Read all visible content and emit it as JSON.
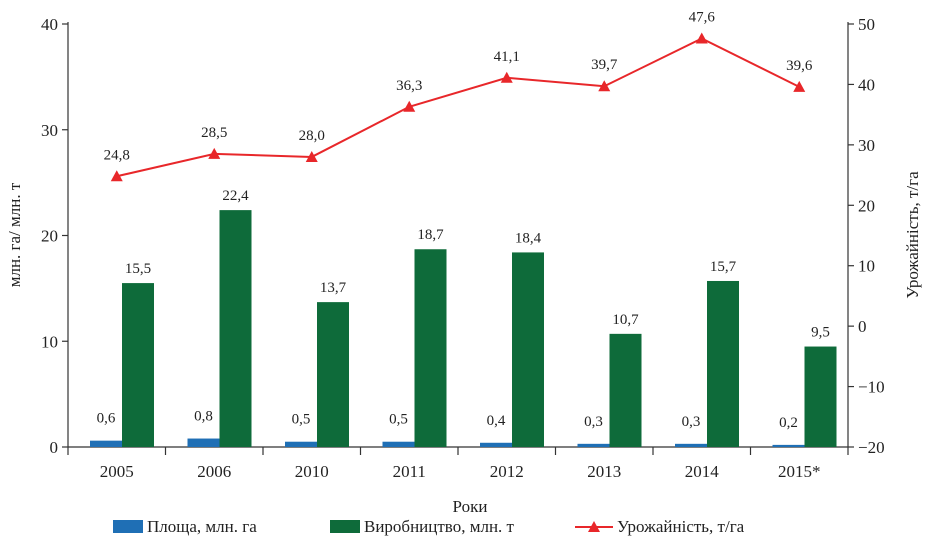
{
  "chart_data": {
    "type": "bar",
    "categories": [
      "2005",
      "2006",
      "2010",
      "2011",
      "2012",
      "2013",
      "2014",
      "2015*"
    ],
    "xlabel": "Роки",
    "ylabel_left": "млн. га/ млн. т",
    "ylabel_right": "Урожайність, т/га",
    "ylim_left": [
      0,
      40
    ],
    "yticks_left": [
      0,
      10,
      20,
      30,
      40
    ],
    "ylim_right": [
      -20,
      50
    ],
    "yticks_right": [
      -20,
      -10,
      0,
      10,
      20,
      30,
      40,
      50
    ],
    "grid": false,
    "legend_position": "bottom",
    "series": [
      {
        "name": "Площа, млн. га",
        "type": "bar",
        "axis": "left",
        "color": "#1f6fb5",
        "values": [
          0.6,
          0.8,
          0.5,
          0.5,
          0.4,
          0.3,
          0.3,
          0.2
        ],
        "labels": [
          "0,6",
          "0,8",
          "0,5",
          "0,5",
          "0,4",
          "0,3",
          "0,3",
          "0,2"
        ]
      },
      {
        "name": "Виробництво, млн. т",
        "type": "bar",
        "axis": "left",
        "color": "#0e6b3a",
        "values": [
          15.5,
          22.4,
          13.7,
          18.7,
          18.4,
          10.7,
          15.7,
          9.5
        ],
        "labels": [
          "15,5",
          "22,4",
          "13,7",
          "18,7",
          "18,4",
          "10,7",
          "15,7",
          "9,5"
        ]
      },
      {
        "name": "Урожайність, т/га",
        "type": "line",
        "axis": "right",
        "color": "#e8272a",
        "marker": "triangle",
        "values": [
          24.8,
          28.5,
          28.0,
          36.3,
          41.1,
          39.7,
          47.6,
          39.6
        ],
        "labels": [
          "24,8",
          "28,5",
          "28,0",
          "36,3",
          "41,1",
          "39,7",
          "47,6",
          "39,6"
        ]
      }
    ]
  }
}
